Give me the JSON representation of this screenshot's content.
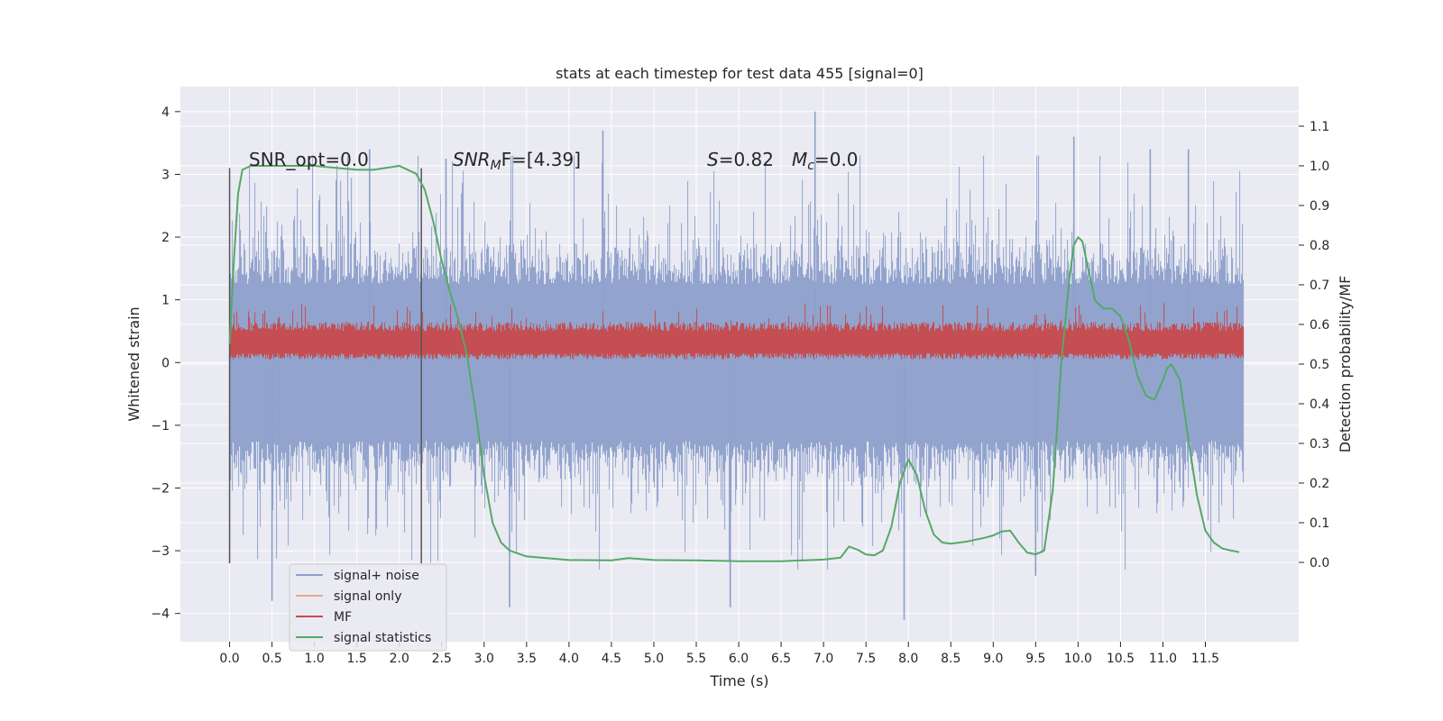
{
  "chart_data": {
    "type": "line",
    "title": "stats at each timestep for test data 455 [signal=0]",
    "xlabel": "Time (s)",
    "ylabel": "Whitened strain",
    "ylabel_right": "Detection probability/MF",
    "xlim": [
      -0.58,
      12.6
    ],
    "ylim": [
      -4.45,
      4.4
    ],
    "ylim_right": [
      -0.2,
      1.2
    ],
    "x_ticks": [
      0.0,
      0.5,
      1.0,
      1.5,
      2.0,
      2.5,
      3.0,
      3.5,
      4.0,
      4.5,
      5.0,
      5.5,
      6.0,
      6.5,
      7.0,
      7.5,
      8.0,
      8.5,
      9.0,
      9.5,
      10.0,
      10.5,
      11.0,
      11.5
    ],
    "x_tick_labels": [
      "0.0",
      "0.5",
      "1.0",
      "1.5",
      "2.0",
      "2.5",
      "3.0",
      "3.5",
      "4.0",
      "4.5",
      "5.0",
      "5.5",
      "6.0",
      "6.5",
      "7.0",
      "7.5",
      "8.0",
      "8.5",
      "9.0",
      "9.5",
      "10.0",
      "10.5",
      "11.0",
      "11.5"
    ],
    "y_ticks": [
      4,
      3,
      2,
      1,
      0,
      -1,
      -2,
      -3,
      -4
    ],
    "y_tick_labels": [
      "4",
      "3",
      "2",
      "1",
      "0",
      "−1",
      "−2",
      "−3",
      "−4"
    ],
    "y_ticks_right": [
      1.1,
      1.0,
      0.9,
      0.8,
      0.7,
      0.6,
      0.5,
      0.4,
      0.3,
      0.2,
      0.1,
      0.0
    ],
    "y_tick_labels_right": [
      "1.1",
      "1.0",
      "0.9",
      "0.8",
      "0.7",
      "0.6",
      "0.5",
      "0.4",
      "0.3",
      "0.2",
      "0.1",
      "0.0"
    ],
    "grid": true,
    "legend_position": "lower-left",
    "vlines": [
      0.0,
      2.26
    ],
    "vline_range": [
      -3.2,
      3.1
    ],
    "annotations": {
      "snr_opt": "SNR_opt=0.0",
      "snr_mf_main": "SNR",
      "snr_mf_sub": "M",
      "snr_mf_rest": "F=[4.39]",
      "s_main": "S",
      "s_rest": "=0.82",
      "mc_main": "M",
      "mc_sub": "c",
      "mc_rest": "=0.0"
    },
    "series": [
      {
        "name": "signal+ noise",
        "color": "#8da0cb",
        "axis": "left",
        "style": "noise",
        "x_range": [
          0.0,
          11.95
        ],
        "band_center": 0.0,
        "band_typical": 1.25,
        "band_peaks": 3.0,
        "extremes": [
          {
            "x": 0.5,
            "y": -3.8
          },
          {
            "x": 1.65,
            "y": 3.4
          },
          {
            "x": 3.3,
            "y": -3.9
          },
          {
            "x": 4.4,
            "y": 3.7
          },
          {
            "x": 5.9,
            "y": -3.9
          },
          {
            "x": 6.9,
            "y": 4.0
          },
          {
            "x": 7.95,
            "y": -4.1
          },
          {
            "x": 9.5,
            "y": -3.4
          },
          {
            "x": 9.95,
            "y": 3.6
          },
          {
            "x": 11.3,
            "y": 3.4
          },
          {
            "x": 2.55,
            "y": 3.25
          },
          {
            "x": 10.85,
            "y": 3.4
          }
        ]
      },
      {
        "name": "signal only",
        "color": "#e8a98b",
        "axis": "left",
        "style": "none"
      },
      {
        "name": "MF",
        "color": "#c44e52",
        "axis": "left",
        "style": "band",
        "x_range": [
          0.0,
          11.95
        ],
        "band_low": 0.05,
        "band_high": 0.6,
        "band_peaks": 0.95
      },
      {
        "name": "signal statistics",
        "color": "#55a868",
        "axis": "right",
        "style": "line",
        "x": [
          0.0,
          0.05,
          0.1,
          0.15,
          0.25,
          0.5,
          1.0,
          1.5,
          1.7,
          2.0,
          2.2,
          2.3,
          2.4,
          2.5,
          2.6,
          2.7,
          2.8,
          2.9,
          3.0,
          3.1,
          3.2,
          3.3,
          3.5,
          4.0,
          4.5,
          4.7,
          5.0,
          5.5,
          6.0,
          6.5,
          7.0,
          7.2,
          7.3,
          7.4,
          7.5,
          7.6,
          7.7,
          7.8,
          7.9,
          8.0,
          8.05,
          8.1,
          8.2,
          8.3,
          8.4,
          8.5,
          8.7,
          8.9,
          9.0,
          9.1,
          9.2,
          9.3,
          9.4,
          9.5,
          9.6,
          9.7,
          9.75,
          9.8,
          9.9,
          9.95,
          10.0,
          10.05,
          10.1,
          10.2,
          10.3,
          10.4,
          10.5,
          10.6,
          10.7,
          10.8,
          10.9,
          11.0,
          11.05,
          11.1,
          11.2,
          11.3,
          11.4,
          11.5,
          11.6,
          11.7,
          11.8,
          11.9
        ],
        "y": [
          0.55,
          0.76,
          0.93,
          0.99,
          1.0,
          1.0,
          1.0,
          0.99,
          0.99,
          1.0,
          0.98,
          0.94,
          0.86,
          0.76,
          0.68,
          0.61,
          0.52,
          0.38,
          0.22,
          0.1,
          0.05,
          0.03,
          0.015,
          0.006,
          0.005,
          0.011,
          0.006,
          0.005,
          0.003,
          0.003,
          0.007,
          0.012,
          0.04,
          0.032,
          0.02,
          0.018,
          0.03,
          0.09,
          0.2,
          0.26,
          0.24,
          0.22,
          0.13,
          0.07,
          0.05,
          0.047,
          0.053,
          0.062,
          0.068,
          0.078,
          0.08,
          0.05,
          0.025,
          0.02,
          0.03,
          0.18,
          0.33,
          0.5,
          0.72,
          0.8,
          0.82,
          0.81,
          0.76,
          0.66,
          0.64,
          0.64,
          0.62,
          0.56,
          0.47,
          0.42,
          0.41,
          0.46,
          0.49,
          0.5,
          0.46,
          0.31,
          0.17,
          0.08,
          0.05,
          0.035,
          0.03,
          0.026
        ]
      }
    ]
  }
}
